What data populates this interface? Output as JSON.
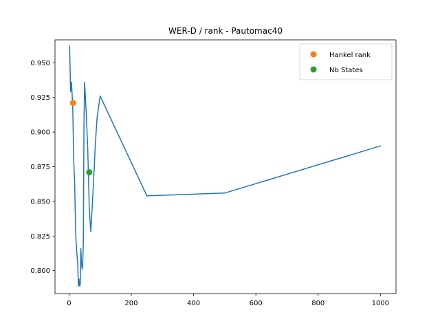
{
  "chart_data": {
    "type": "line",
    "title": "WER-D / rank - Pautomac40",
    "xlabel": "",
    "ylabel": "",
    "xlim": [
      -45,
      1050
    ],
    "ylim": [
      0.7835,
      0.9665
    ],
    "x_ticks": [
      0,
      200,
      400,
      600,
      800,
      1000
    ],
    "y_ticks": [
      0.8,
      0.825,
      0.85,
      0.875,
      0.9,
      0.925,
      0.95
    ],
    "grid": false,
    "legend_position": "top-right",
    "series": [
      {
        "kind": "line",
        "color": "#1f77b4",
        "x": [
          2,
          5,
          8,
          10,
          12,
          15,
          18,
          20,
          22,
          25,
          28,
          30,
          32,
          34,
          36,
          38,
          40,
          42,
          44,
          46,
          48,
          50,
          55,
          60,
          65,
          70,
          75,
          80,
          85,
          90,
          100,
          250,
          500,
          1000
        ],
        "y": [
          0.962,
          0.929,
          0.936,
          0.927,
          0.918,
          0.88,
          0.864,
          0.843,
          0.824,
          0.813,
          0.805,
          0.789,
          0.794,
          0.789,
          0.79,
          0.816,
          0.806,
          0.801,
          0.804,
          0.82,
          0.905,
          0.936,
          0.915,
          0.889,
          0.845,
          0.828,
          0.848,
          0.87,
          0.893,
          0.91,
          0.926,
          0.854,
          0.856,
          0.89
        ]
      },
      {
        "kind": "point",
        "name": "Hankel rank",
        "color": "#ff7f0e",
        "x": [
          13
        ],
        "y": [
          0.921
        ]
      },
      {
        "kind": "point",
        "name": "Nb States",
        "color": "#2ca02c",
        "x": [
          65
        ],
        "y": [
          0.871
        ]
      }
    ]
  }
}
